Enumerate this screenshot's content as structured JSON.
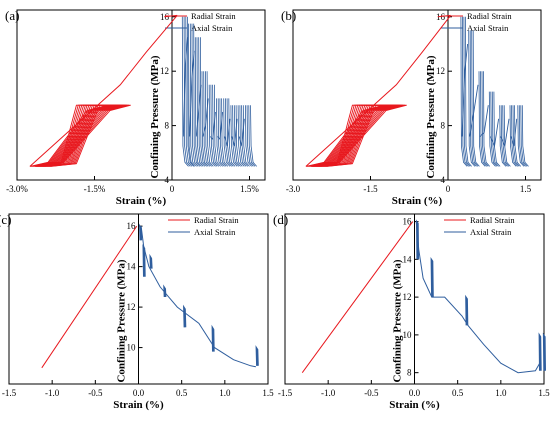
{
  "figure": {
    "colors": {
      "radial": "#e8181e",
      "axial": "#2f5e9e",
      "axis": "#000000"
    }
  },
  "chart_data": [
    {
      "panel": "(a)",
      "type": "line",
      "xlabel": "Strain (%)",
      "ylabel": "Confining Pressure (MPa)",
      "xlim": [
        -3.0,
        1.8
      ],
      "ylim": [
        4,
        16.5
      ],
      "xticks": [
        -3.0,
        -1.5,
        0,
        1.5
      ],
      "xtick_labels": [
        "-3.0%",
        "-1.5%",
        "0",
        "1.5%"
      ],
      "yticks": [
        4,
        8,
        12,
        16
      ],
      "ytick_labels": [
        "4",
        "8",
        "12",
        "16"
      ],
      "legend": "top-right",
      "series": [
        {
          "name": "Radial Strain",
          "shape": "radial_cyclic",
          "peak_x": 0.1,
          "left_x": -2.75,
          "cycles": 14,
          "lower": 5,
          "upper": 9.5,
          "spread": 0.3,
          "start_x": -0.15,
          "start_y": 16
        },
        {
          "name": "Axial Strain",
          "shape": "axial_cyclic",
          "x": [
            0.2,
            0.32,
            0.45,
            0.58,
            0.72,
            0.86,
            1.0,
            1.14,
            1.28,
            1.42
          ],
          "peaks": [
            16,
            15.5,
            14.5,
            12,
            11,
            10,
            10,
            9.5,
            9.5,
            9.5
          ],
          "lower": 5,
          "bundle": 0.4
        }
      ]
    },
    {
      "panel": "(b)",
      "type": "line",
      "xlabel": "Strain (%)",
      "ylabel": "Confining Pressure (MPa)",
      "xlim": [
        -3.0,
        1.8
      ],
      "ylim": [
        4,
        16.5
      ],
      "xticks": [
        -3.0,
        -1.5,
        0,
        1.5
      ],
      "xtick_labels": [
        "-3.0",
        "-1.5",
        "0",
        "1.5"
      ],
      "yticks": [
        4,
        8,
        12,
        16
      ],
      "ytick_labels": [
        "4",
        "8",
        "12",
        "16"
      ],
      "legend": "top-right",
      "series": [
        {
          "name": "Radial Strain",
          "shape": "radial_cyclic",
          "peak_x": 0.05,
          "left_x": -2.75,
          "cycles": 14,
          "lower": 5,
          "upper": 9.5,
          "spread": 0.3,
          "start_x": -0.2,
          "start_y": 16
        },
        {
          "name": "Axial Strain",
          "shape": "axial_cyclic",
          "x": [
            0.25,
            0.4,
            0.6,
            0.8,
            1.0,
            1.2,
            1.35
          ],
          "peaks": [
            16,
            15,
            12,
            10.5,
            9.5,
            9.5,
            9.5
          ],
          "lower": 5,
          "bundle": 0.35
        }
      ]
    },
    {
      "panel": "(c)",
      "type": "line",
      "xlabel": "Strain (%)",
      "ylabel": "Confining Pressure (MPa)",
      "xlim": [
        -1.5,
        1.5
      ],
      "ylim": [
        8.2,
        16.6
      ],
      "xticks": [
        -1.5,
        -1.0,
        -0.5,
        0.0,
        0.5,
        1.0,
        1.5
      ],
      "xtick_labels": [
        "-1.5",
        "-1.0",
        "-0.5",
        "0.0",
        "0.5",
        "1.0",
        "1.5"
      ],
      "yticks": [
        10,
        12,
        14,
        16
      ],
      "ytick_labels": [
        "10",
        "12",
        "14",
        "16"
      ],
      "legend": "top-right",
      "series": [
        {
          "name": "Radial Strain",
          "shape": "line",
          "x": [
            -1.12,
            -0.02
          ],
          "y": [
            9,
            16
          ]
        },
        {
          "name": "Axial Strain",
          "shape": "axial_decay",
          "x": [
            0.03,
            0.06,
            0.12,
            0.25,
            0.45,
            0.7,
            0.88,
            1.1,
            1.3,
            1.36
          ],
          "y": [
            16,
            15,
            14,
            13,
            12,
            11.2,
            10,
            9.4,
            9.1,
            9.05
          ],
          "spike_x": [
            0.02,
            0.06,
            0.14,
            0.3,
            0.53,
            0.86,
            1.37
          ],
          "spike_top": [
            16,
            15,
            14.5,
            13,
            12,
            11,
            10
          ],
          "spike_bottom": [
            15.3,
            13.5,
            13.9,
            12.5,
            11,
            9.8,
            9.1
          ]
        }
      ]
    },
    {
      "panel": "(d)",
      "type": "line",
      "xlabel": "Strain (%)",
      "ylabel": "Confining Pressure (MPa)",
      "xlim": [
        -1.5,
        1.5
      ],
      "ylim": [
        7.4,
        16.4
      ],
      "xticks": [
        -1.5,
        -1.0,
        -0.5,
        0.0,
        0.5,
        1.0,
        1.5
      ],
      "xtick_labels": [
        "-1.5",
        "-1.0",
        "-0.5",
        "0.0",
        "0.5",
        "1.0",
        "1.5"
      ],
      "yticks": [
        8,
        10,
        12,
        14,
        16
      ],
      "ytick_labels": [
        "8",
        "10",
        "12",
        "14",
        "16"
      ],
      "legend": "top-right",
      "series": [
        {
          "name": "Radial Strain",
          "shape": "line",
          "x": [
            -1.3,
            -0.02
          ],
          "y": [
            8,
            16
          ]
        },
        {
          "name": "Axial Strain",
          "shape": "axial_decay",
          "x": [
            0.02,
            0.05,
            0.1,
            0.2,
            0.35,
            0.55,
            0.62,
            0.8,
            1.0,
            1.2,
            1.4,
            1.45
          ],
          "y": [
            16,
            14.5,
            13,
            12,
            12,
            11,
            10.5,
            9.5,
            8.5,
            8,
            8.1,
            8.5
          ],
          "spike_x": [
            0.03,
            0.2,
            0.6,
            1.45,
            1.5
          ],
          "spike_top": [
            16,
            14,
            12,
            10,
            10
          ],
          "spike_bottom": [
            14,
            12,
            10.5,
            8.1,
            8.1
          ]
        }
      ]
    }
  ]
}
